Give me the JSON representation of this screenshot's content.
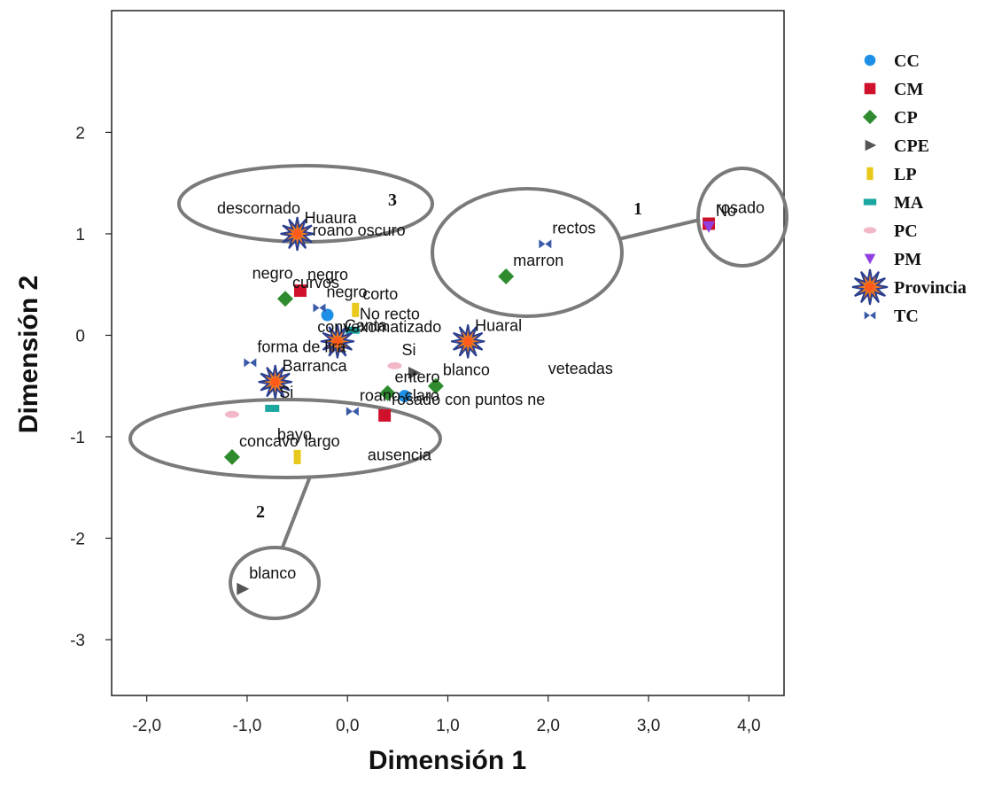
{
  "chart_data": {
    "type": "scatter",
    "xlabel": "Dimensión 1",
    "ylabel": "Dimensión 2",
    "xlim": [
      -2.35,
      4.35
    ],
    "ylim": [
      -3.55,
      3.2
    ],
    "xticks": [
      -2.0,
      -1.0,
      0.0,
      1.0,
      2.0,
      3.0,
      4.0
    ],
    "xtick_labels": [
      "-2,0",
      "-1,0",
      "0,0",
      "1,0",
      "2,0",
      "3,0",
      "4,0"
    ],
    "yticks": [
      -3,
      -2,
      -1,
      0,
      1,
      2
    ],
    "ytick_labels": [
      "-3",
      "-2",
      "-1",
      "0",
      "1",
      "2"
    ],
    "grid": false,
    "legend_position": "right",
    "series": [
      {
        "name": "CC",
        "marker": "circle",
        "color": "#1e8fe6",
        "points": [
          {
            "x": 0.57,
            "y": -0.6,
            "label": ""
          },
          {
            "x": -0.2,
            "y": 0.2,
            "label": ""
          }
        ]
      },
      {
        "name": "CM",
        "marker": "square",
        "color": "#d0112b",
        "points": [
          {
            "x": -0.47,
            "y": 0.44,
            "label": "negro"
          },
          {
            "x": 0.37,
            "y": -0.79,
            "label": "rosado con puntos ne"
          },
          {
            "x": 3.6,
            "y": 1.1,
            "label": "rosado"
          }
        ]
      },
      {
        "name": "CP",
        "marker": "diamond",
        "color": "#2e8b2e",
        "points": [
          {
            "x": -0.62,
            "y": 0.36,
            "label": "curvos"
          },
          {
            "x": 1.58,
            "y": 0.58,
            "label": "marron"
          },
          {
            "x": 0.4,
            "y": -0.57,
            "label": "entero"
          },
          {
            "x": 0.88,
            "y": -0.5,
            "label": "blanco"
          },
          {
            "x": -1.15,
            "y": -1.2,
            "label": "concavo"
          }
        ]
      },
      {
        "name": "CPE",
        "marker": "triangle-right",
        "color": "#555555",
        "points": [
          {
            "x": 0.66,
            "y": -0.37,
            "label": ""
          },
          {
            "x": -1.05,
            "y": -2.5,
            "label": "blanco"
          }
        ]
      },
      {
        "name": "LP",
        "marker": "bar",
        "color": "#e8c81a",
        "points": [
          {
            "x": 0.08,
            "y": 0.25,
            "label": "corto"
          },
          {
            "x": -0.5,
            "y": -1.2,
            "label": "largo"
          }
        ]
      },
      {
        "name": "MA",
        "marker": "dash",
        "color": "#1ba6a0",
        "points": [
          {
            "x": 0.05,
            "y": 0.05,
            "label": "No recto"
          },
          {
            "x": -0.75,
            "y": -0.72,
            "label": "Si"
          }
        ]
      },
      {
        "name": "PC",
        "marker": "ellipse",
        "color": "#f2b8c8",
        "points": [
          {
            "x": 0.47,
            "y": -0.3,
            "label": "Si"
          },
          {
            "x": -1.15,
            "y": -0.78,
            "label": ""
          }
        ]
      },
      {
        "name": "PM",
        "marker": "triangle-down",
        "color": "#9040e0",
        "points": [
          {
            "x": 3.6,
            "y": 1.07,
            "label": "No"
          }
        ]
      },
      {
        "name": "Provincia",
        "marker": "star",
        "color": "#f07820",
        "points": [
          {
            "x": -0.5,
            "y": 1.0,
            "label": "Huaura"
          },
          {
            "x": 1.2,
            "y": -0.06,
            "label": "Huaral"
          },
          {
            "x": -0.1,
            "y": -0.06,
            "label": "Canta"
          },
          {
            "x": -0.72,
            "y": -0.46,
            "label": "Barranca"
          }
        ]
      },
      {
        "name": "TC",
        "marker": "bowtie",
        "color": "#3a5aa8",
        "points": [
          {
            "x": 1.97,
            "y": 0.9,
            "label": "rectos"
          },
          {
            "x": -0.28,
            "y": 0.27,
            "label": "negro"
          },
          {
            "x": -0.97,
            "y": -0.27,
            "label": "forma de lira"
          },
          {
            "x": 0.05,
            "y": -0.75,
            "label": "roano claro"
          }
        ]
      }
    ],
    "free_labels": [
      {
        "text": "descornado",
        "x": -1.3,
        "y": 1.2
      },
      {
        "text": "roano oscuro",
        "x": -0.35,
        "y": 0.98
      },
      {
        "text": "negro",
        "x": -0.95,
        "y": 0.56
      },
      {
        "text": "convexomatizado",
        "x": -0.3,
        "y": 0.03
      },
      {
        "text": "veteadas",
        "x": 2.0,
        "y": -0.38
      },
      {
        "text": "bayo",
        "x": -0.7,
        "y": -1.03
      },
      {
        "text": "ausencia",
        "x": 0.2,
        "y": -1.23
      }
    ],
    "groups": [
      {
        "label": "1"
      },
      {
        "label": "2"
      },
      {
        "label": "3"
      }
    ]
  }
}
